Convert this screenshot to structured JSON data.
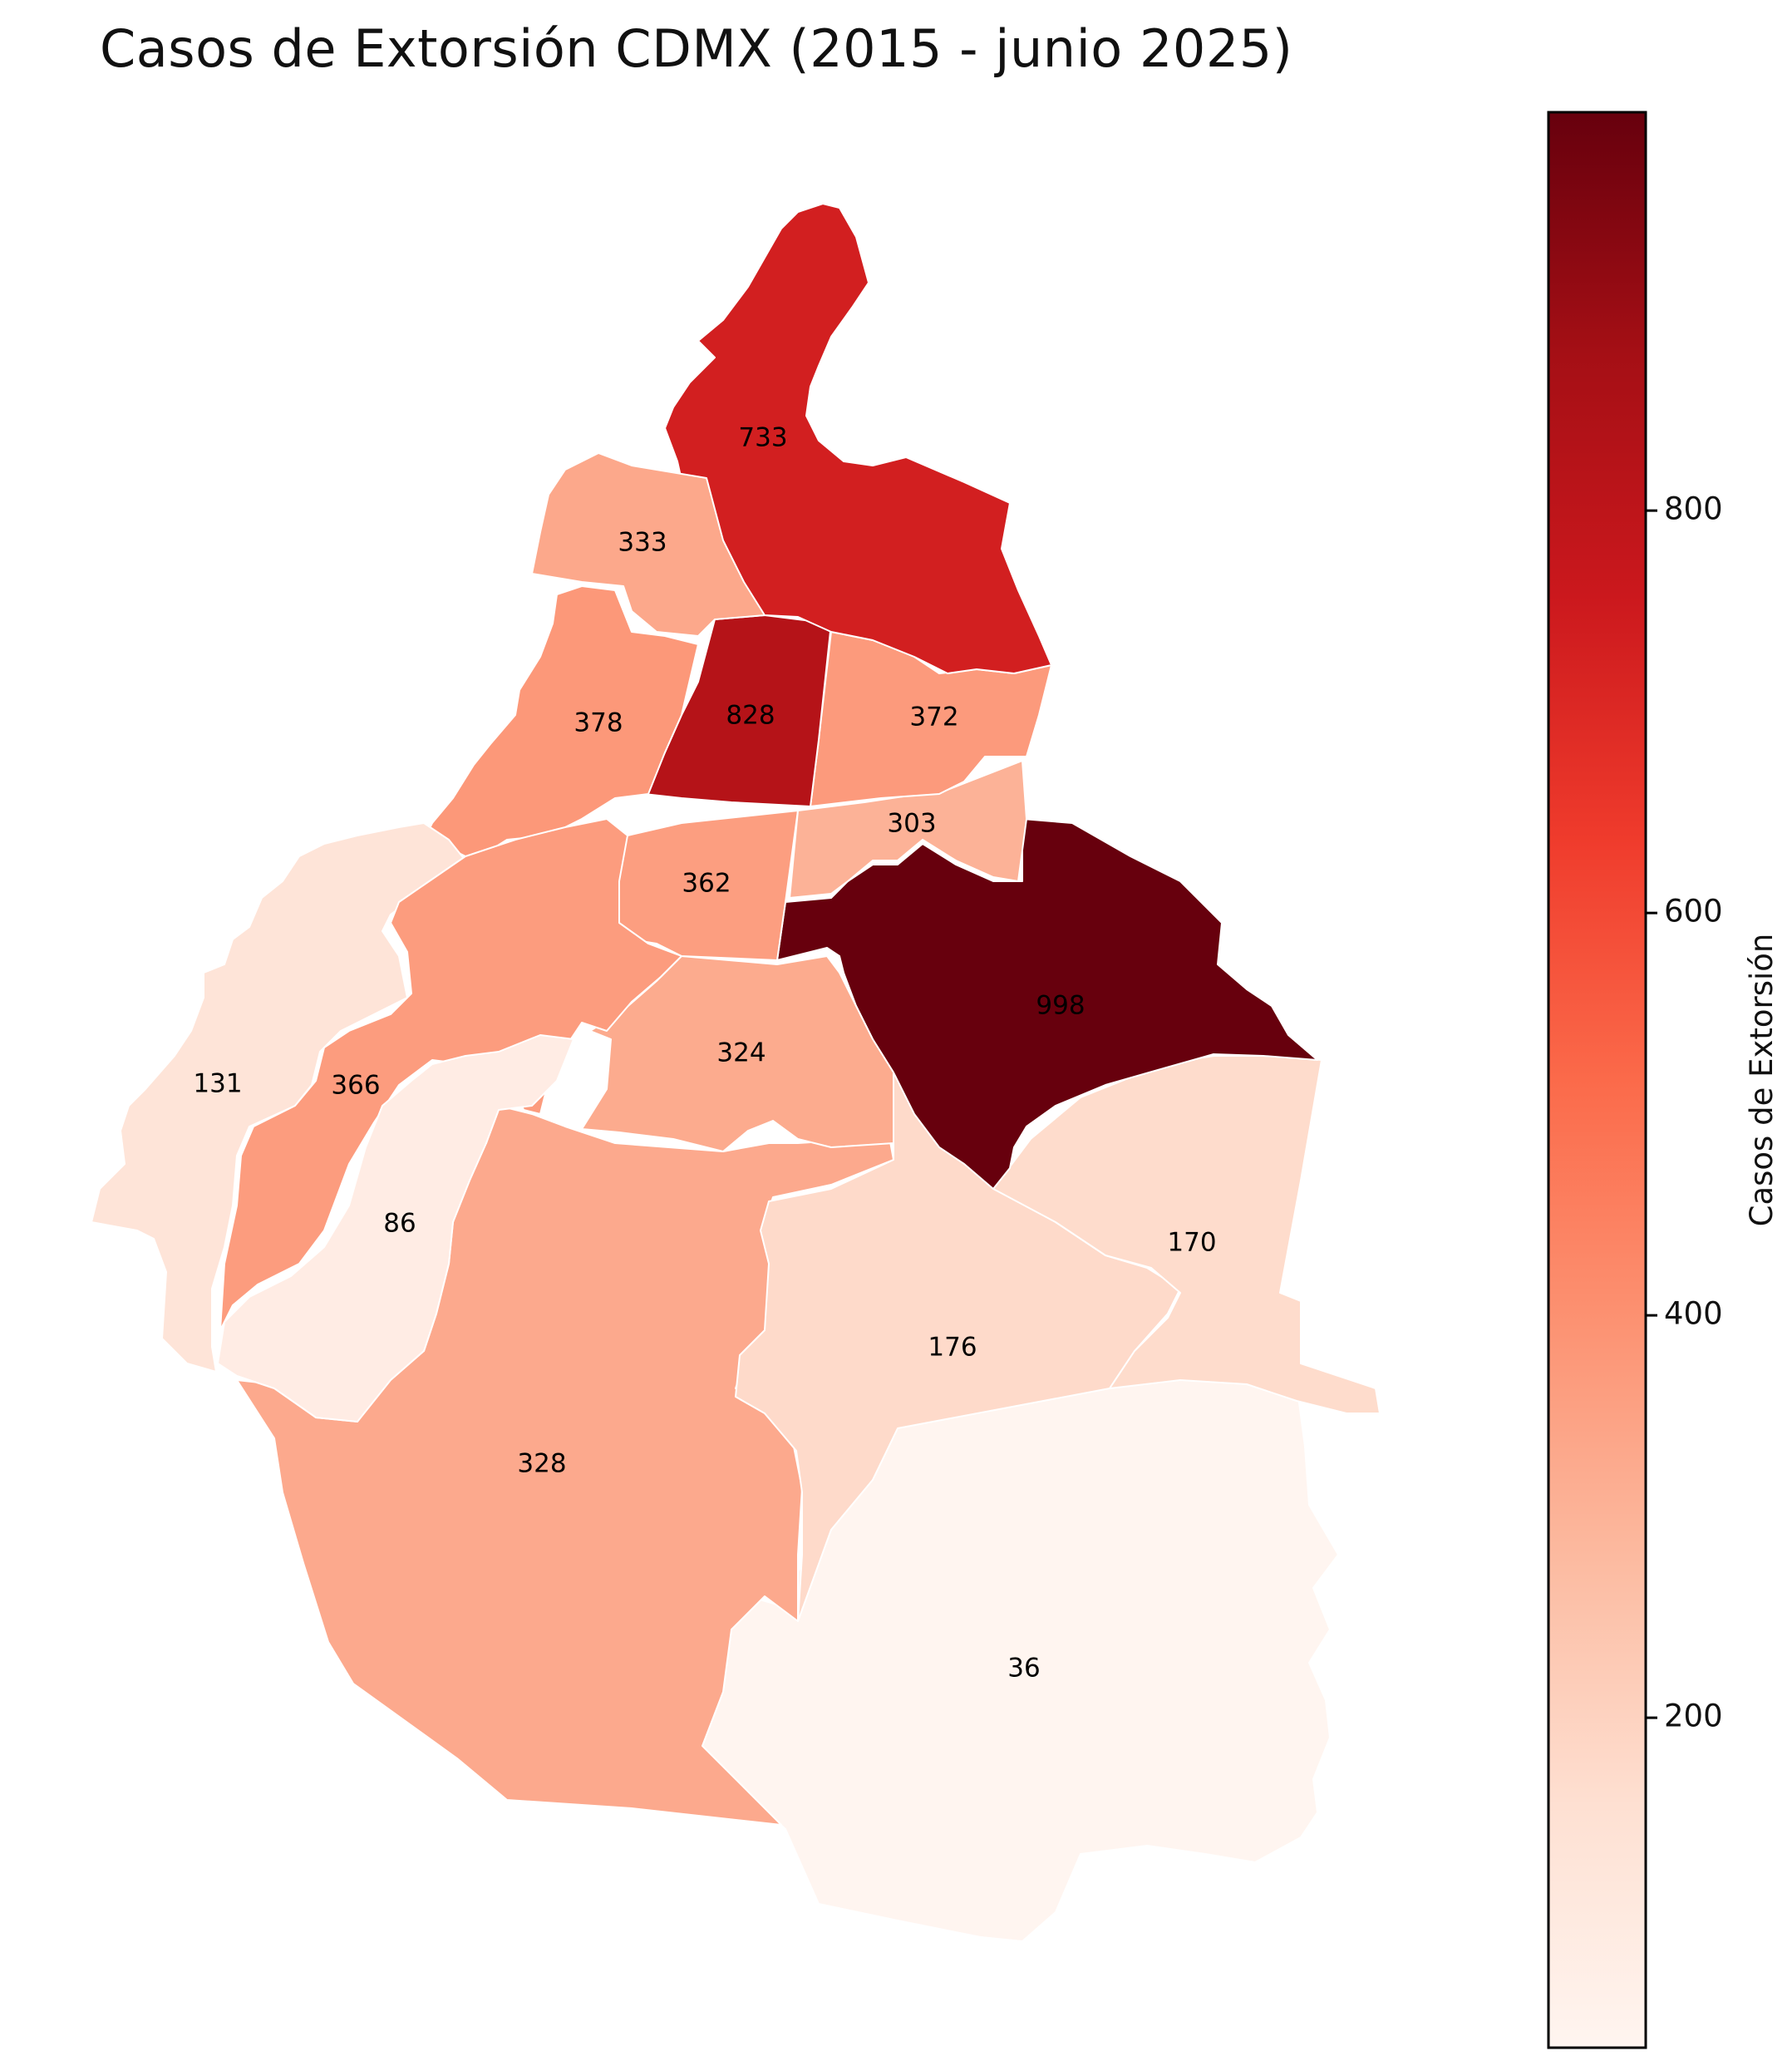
{
  "title": "Casos de Extorsión CDMX (2015 - junio 2025)",
  "colorbar": {
    "label": "Casos de Extorsión",
    "min": 36,
    "max": 998,
    "ticks": [
      200,
      400,
      600,
      800
    ],
    "colormap": "Reds",
    "stops": [
      "#fff5f0",
      "#fee0d2",
      "#fcbba1",
      "#fc9272",
      "#fb6a4a",
      "#ef3b2c",
      "#cb181d",
      "#a50f15",
      "#67000d"
    ]
  },
  "chart_data": {
    "type": "choropleth",
    "title": "Casos de Extorsión CDMX (2015 - junio 2025)",
    "value_label": "Casos de Extorsión",
    "range": [
      36,
      998
    ],
    "regions": [
      {
        "id": "r-733",
        "value": 733
      },
      {
        "id": "r-333",
        "value": 333
      },
      {
        "id": "r-378",
        "value": 378
      },
      {
        "id": "r-828",
        "value": 828
      },
      {
        "id": "r-372",
        "value": 372
      },
      {
        "id": "r-303",
        "value": 303
      },
      {
        "id": "r-362",
        "value": 362
      },
      {
        "id": "r-998",
        "value": 998
      },
      {
        "id": "r-324",
        "value": 324
      },
      {
        "id": "r-131",
        "value": 131
      },
      {
        "id": "r-366",
        "value": 366
      },
      {
        "id": "r-86",
        "value": 86
      },
      {
        "id": "r-328",
        "value": 328
      },
      {
        "id": "r-176",
        "value": 176
      },
      {
        "id": "r-170",
        "value": 170
      },
      {
        "id": "r-36",
        "value": 36
      }
    ]
  }
}
